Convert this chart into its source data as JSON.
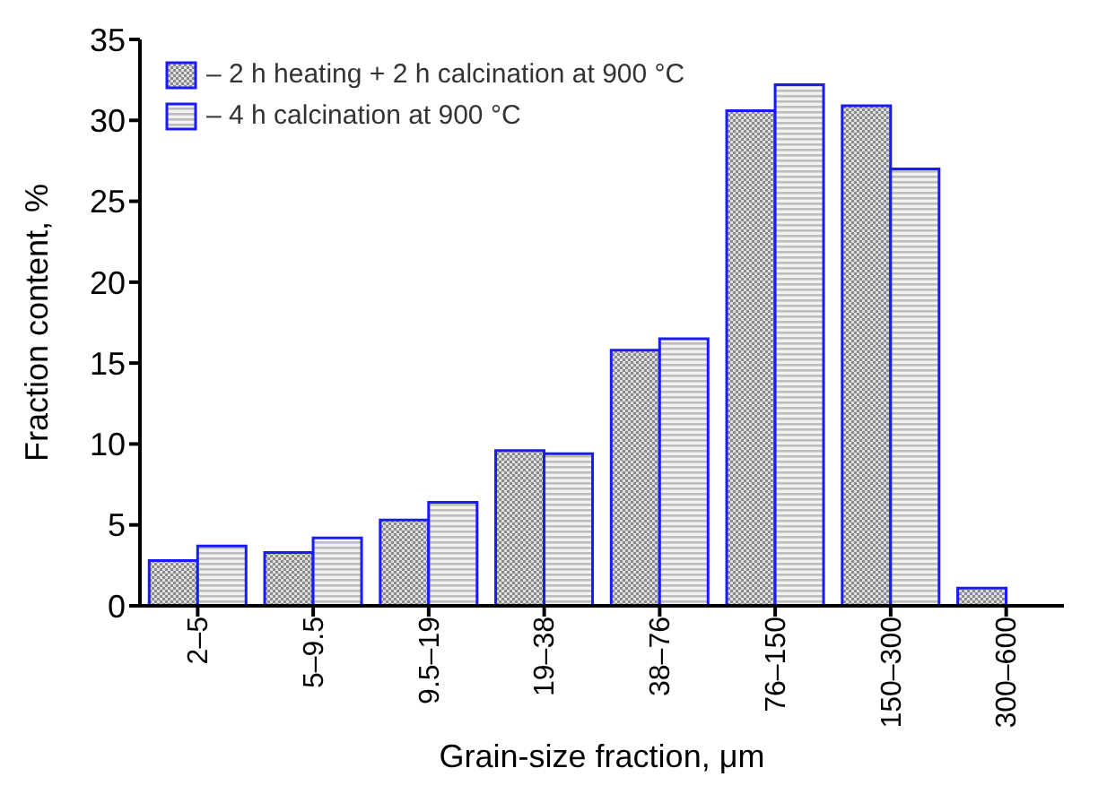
{
  "chart_data": {
    "type": "bar",
    "xlabel": "Grain-size fraction, μm",
    "ylabel": "Fraction content, %",
    "categories": [
      "2–5",
      "5–9.5",
      "9.5–19",
      "19–38",
      "38–76",
      "76–150",
      "150–300",
      "300–600"
    ],
    "series": [
      {
        "name": "– 2 h heating + 2 h calcination at 900  °C",
        "color": "#1a1aff",
        "values": [
          2.8,
          3.3,
          5.3,
          9.6,
          15.8,
          30.6,
          30.9,
          1.1
        ]
      },
      {
        "name": "– 4 h calcination at 900  °C",
        "color": "#1a1aff",
        "values": [
          3.7,
          4.2,
          6.4,
          9.4,
          16.5,
          32.2,
          27.0,
          null
        ]
      }
    ],
    "ylim": [
      0,
      35
    ],
    "yticks": [
      0,
      5,
      10,
      15,
      20,
      25,
      30,
      35
    ],
    "grid": false,
    "legend": "top left"
  }
}
